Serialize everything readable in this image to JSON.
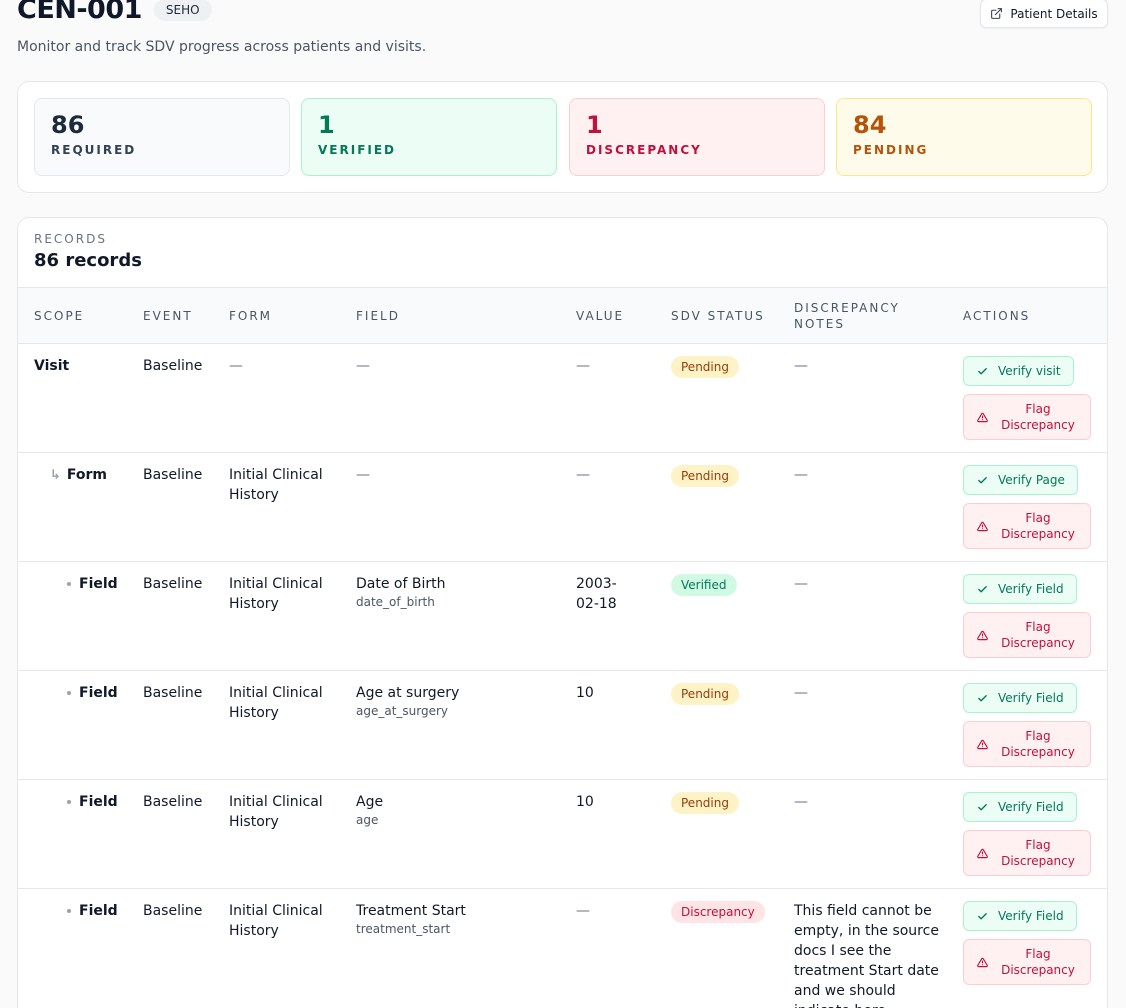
{
  "header": {
    "title": "CEN-001",
    "tag": "SEHO",
    "subtitle": "Monitor and track SDV progress across patients and visits.",
    "details_button": "Patient Details"
  },
  "stats": {
    "required": {
      "value": "86",
      "label": "REQUIRED"
    },
    "verified": {
      "value": "1",
      "label": "VERIFIED"
    },
    "discrepancy": {
      "value": "1",
      "label": "DISCREPANCY"
    },
    "pending": {
      "value": "84",
      "label": "PENDING"
    }
  },
  "records": {
    "eyebrow": "RECORDS",
    "count": "86 records",
    "columns": {
      "scope": "SCOPE",
      "event": "EVENT",
      "form": "FORM",
      "field": "FIELD",
      "value": "VALUE",
      "status": "SDV STATUS",
      "notes_line1": "DISCREPANCY",
      "notes_line2": "NOTES",
      "actions": "ACTIONS"
    },
    "rows": [
      {
        "scope": "Visit",
        "event": "Baseline",
        "form": "—",
        "field": "—",
        "field_key": "",
        "value": "—",
        "status": "Pending",
        "notes": "—",
        "verify": "Verify visit",
        "flag_line1": "Flag",
        "flag_line2": "Discrepancy"
      },
      {
        "scope": "Form",
        "event": "Baseline",
        "form": "Initial Clinical History",
        "field": "—",
        "field_key": "",
        "value": "—",
        "status": "Pending",
        "notes": "—",
        "verify": "Verify Page",
        "flag_line1": "Flag",
        "flag_line2": "Discrepancy"
      },
      {
        "scope": "Field",
        "event": "Baseline",
        "form": "Initial Clinical History",
        "field": "Date of Birth",
        "field_key": "date_of_birth",
        "value": "2003-02-18",
        "status": "Verified",
        "notes": "—",
        "verify": "Verify Field",
        "flag_line1": "Flag",
        "flag_line2": "Discrepancy"
      },
      {
        "scope": "Field",
        "event": "Baseline",
        "form": "Initial Clinical History",
        "field": "Age at surgery",
        "field_key": "age_at_surgery",
        "value": "10",
        "status": "Pending",
        "notes": "—",
        "verify": "Verify Field",
        "flag_line1": "Flag",
        "flag_line2": "Discrepancy"
      },
      {
        "scope": "Field",
        "event": "Baseline",
        "form": "Initial Clinical History",
        "field": "Age",
        "field_key": "age",
        "value": "10",
        "status": "Pending",
        "notes": "—",
        "verify": "Verify Field",
        "flag_line1": "Flag",
        "flag_line2": "Discrepancy"
      },
      {
        "scope": "Field",
        "event": "Baseline",
        "form": "Initial Clinical History",
        "field": "Treatment Start",
        "field_key": "treatment_start",
        "value": "—",
        "status": "Discrepancy",
        "notes": "This field cannot be empty, in the source docs I see the treatment Start date and we should indicate here",
        "verify": "Verify Field",
        "flag_line1": "Flag",
        "flag_line2": "Discrepancy"
      }
    ]
  }
}
